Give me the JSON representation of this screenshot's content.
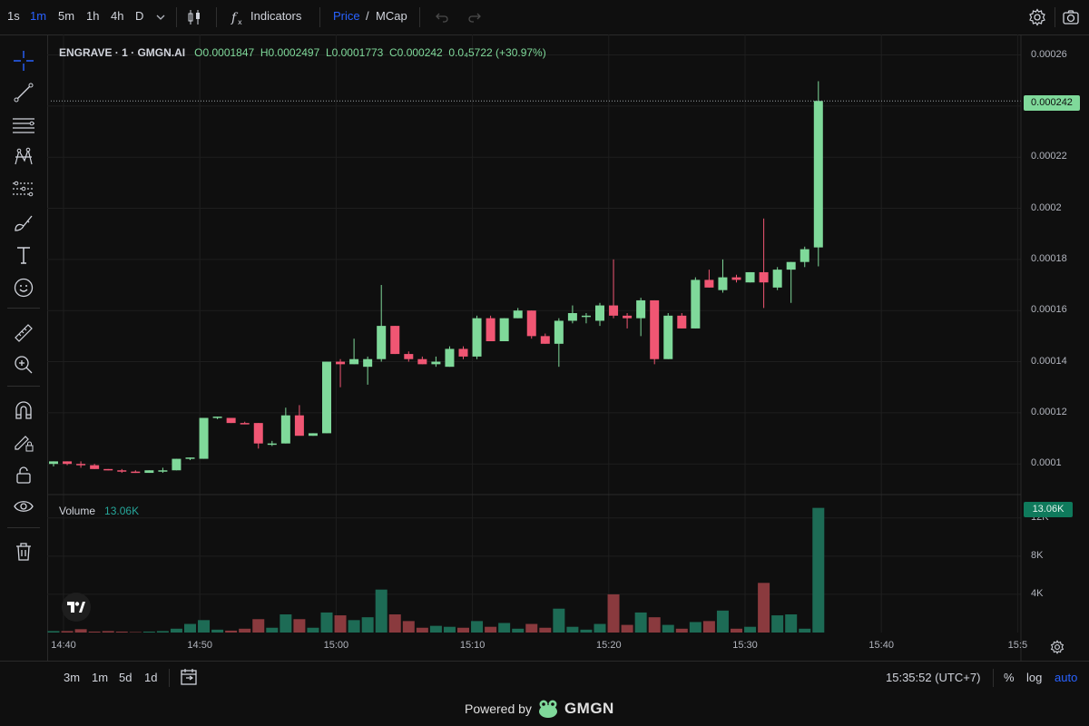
{
  "topbar": {
    "intervals": [
      "1s",
      "1m",
      "5m",
      "1h",
      "4h",
      "D"
    ],
    "active_interval": "1m",
    "indicators_label": "Indicators",
    "price_label": "Price",
    "slash": "/",
    "mcap_label": "MCap"
  },
  "legend": {
    "symbol": "ENGRAVE · 1 · GMGN.AI",
    "open": "O0.0001847",
    "high": "H0.0002497",
    "low": "L0.0001773",
    "close": "C0.000242",
    "change": "0.0₄5722 (+30.97%)"
  },
  "volume_legend": {
    "label": "Volume",
    "value": "13.06K"
  },
  "price_axis": {
    "ticks": [
      "0.00026",
      "0.00024",
      "0.00022",
      "0.0002",
      "0.00018",
      "0.00016",
      "0.00014",
      "0.00012",
      "0.0001"
    ],
    "last_price": "0.000242"
  },
  "volume_axis": {
    "ticks": [
      "12K",
      "8K",
      "4K"
    ],
    "last_volume": "13.06K"
  },
  "time_axis": [
    "14:40",
    "14:50",
    "15:00",
    "15:10",
    "15:20",
    "15:30",
    "15:40",
    "15:5"
  ],
  "bottombar": {
    "ranges": [
      "3m",
      "1m",
      "5d",
      "1d"
    ],
    "clock": "15:35:52 (UTC+7)",
    "percent_label": "%",
    "log_label": "log",
    "auto_label": "auto"
  },
  "footer": {
    "powered_by": "Powered by",
    "brand": "GMGN"
  },
  "colors": {
    "up": "#7fd99a",
    "down": "#f05673",
    "vol_up": "#1d6b55",
    "vol_down": "#8a3a3e",
    "accent": "#2962ff"
  },
  "chart_data": {
    "type": "candlestick",
    "x_unit": "time (1-minute candles, from 14:40)",
    "y_range": [
      8.8e-05,
      0.000268
    ],
    "candles": [
      {
        "t": "14:40",
        "o": 0.0001,
        "h": 0.000101,
        "l": 9.9e-05,
        "c": 0.000101
      },
      {
        "t": "14:41",
        "o": 0.000101,
        "h": 0.000101,
        "l": 9.95e-05,
        "c": 0.0001
      },
      {
        "t": "14:42",
        "o": 0.0001,
        "h": 0.000101,
        "l": 9.85e-05,
        "c": 9.95e-05
      },
      {
        "t": "14:43",
        "o": 9.95e-05,
        "h": 0.0001,
        "l": 9.8e-05,
        "c": 9.8e-05
      },
      {
        "t": "14:44",
        "o": 9.8e-05,
        "h": 9.8e-05,
        "l": 9.75e-05,
        "c": 9.75e-05
      },
      {
        "t": "14:45",
        "o": 9.75e-05,
        "h": 9.8e-05,
        "l": 9.65e-05,
        "c": 9.7e-05
      },
      {
        "t": "14:46",
        "o": 9.7e-05,
        "h": 9.75e-05,
        "l": 9.65e-05,
        "c": 9.65e-05
      },
      {
        "t": "14:47",
        "o": 9.65e-05,
        "h": 9.75e-05,
        "l": 9.65e-05,
        "c": 9.75e-05
      },
      {
        "t": "14:48",
        "o": 9.75e-05,
        "h": 9.85e-05,
        "l": 9.65e-05,
        "c": 9.75e-05
      },
      {
        "t": "14:49",
        "o": 9.75e-05,
        "h": 0.000102,
        "l": 9.75e-05,
        "c": 0.000102
      },
      {
        "t": "14:50",
        "o": 0.000102,
        "h": 0.0001025,
        "l": 0.0001015,
        "c": 0.0001025
      },
      {
        "t": "14:51",
        "o": 0.000102,
        "h": 0.000118,
        "l": 0.000102,
        "c": 0.000118
      },
      {
        "t": "14:52",
        "o": 0.000118,
        "h": 0.0001185,
        "l": 0.0001175,
        "c": 0.0001185
      },
      {
        "t": "14:53",
        "o": 0.000118,
        "h": 0.000118,
        "l": 0.000116,
        "c": 0.000116
      },
      {
        "t": "14:54",
        "o": 0.000116,
        "h": 0.0001165,
        "l": 0.0001155,
        "c": 0.0001155
      },
      {
        "t": "14:55",
        "o": 0.000116,
        "h": 0.000116,
        "l": 0.000106,
        "c": 0.000108
      },
      {
        "t": "14:56",
        "o": 0.000108,
        "h": 0.000109,
        "l": 0.000107,
        "c": 0.000108
      },
      {
        "t": "14:57",
        "o": 0.000108,
        "h": 0.000122,
        "l": 0.000108,
        "c": 0.000119
      },
      {
        "t": "14:58",
        "o": 0.000119,
        "h": 0.000123,
        "l": 0.000112,
        "c": 0.000111
      },
      {
        "t": "14:59",
        "o": 0.000111,
        "h": 0.000112,
        "l": 0.000111,
        "c": 0.000112
      },
      {
        "t": "15:00",
        "o": 0.000112,
        "h": 0.00014,
        "l": 0.000112,
        "c": 0.00014
      },
      {
        "t": "15:01",
        "o": 0.00014,
        "h": 0.000141,
        "l": 0.00013,
        "c": 0.000139
      },
      {
        "t": "15:02",
        "o": 0.000139,
        "h": 0.000149,
        "l": 0.000139,
        "c": 0.000141
      },
      {
        "t": "15:03",
        "o": 0.000138,
        "h": 0.000142,
        "l": 0.000131,
        "c": 0.000141
      },
      {
        "t": "15:04",
        "o": 0.000141,
        "h": 0.00017,
        "l": 0.00014,
        "c": 0.000154
      },
      {
        "t": "15:05",
        "o": 0.000154,
        "h": 0.000154,
        "l": 0.000143,
        "c": 0.000143
      },
      {
        "t": "15:06",
        "o": 0.000143,
        "h": 0.000144,
        "l": 0.00014,
        "c": 0.000141
      },
      {
        "t": "15:07",
        "o": 0.000141,
        "h": 0.000142,
        "l": 0.000139,
        "c": 0.000139
      },
      {
        "t": "15:08",
        "o": 0.000139,
        "h": 0.000142,
        "l": 0.000138,
        "c": 0.00014
      },
      {
        "t": "15:09",
        "o": 0.000138,
        "h": 0.000146,
        "l": 0.000138,
        "c": 0.000145
      },
      {
        "t": "15:10",
        "o": 0.000145,
        "h": 0.000146,
        "l": 0.000141,
        "c": 0.000142
      },
      {
        "t": "15:11",
        "o": 0.000142,
        "h": 0.000158,
        "l": 0.000141,
        "c": 0.000157
      },
      {
        "t": "15:12",
        "o": 0.000157,
        "h": 0.000158,
        "l": 0.000148,
        "c": 0.000148
      },
      {
        "t": "15:13",
        "o": 0.000148,
        "h": 0.000157,
        "l": 0.000148,
        "c": 0.000157
      },
      {
        "t": "15:14",
        "o": 0.000157,
        "h": 0.000161,
        "l": 0.000157,
        "c": 0.00016
      },
      {
        "t": "15:15",
        "o": 0.00016,
        "h": 0.00016,
        "l": 0.000149,
        "c": 0.00015
      },
      {
        "t": "15:16",
        "o": 0.00015,
        "h": 0.000151,
        "l": 0.000147,
        "c": 0.000147
      },
      {
        "t": "15:17",
        "o": 0.000147,
        "h": 0.000157,
        "l": 0.000138,
        "c": 0.000156
      },
      {
        "t": "15:18",
        "o": 0.000156,
        "h": 0.000162,
        "l": 0.000155,
        "c": 0.000159
      },
      {
        "t": "15:19",
        "o": 0.000158,
        "h": 0.000159,
        "l": 0.000155,
        "c": 0.000158
      },
      {
        "t": "15:20",
        "o": 0.000156,
        "h": 0.000163,
        "l": 0.000154,
        "c": 0.000162
      },
      {
        "t": "15:21",
        "o": 0.000162,
        "h": 0.00018,
        "l": 0.000157,
        "c": 0.000158
      },
      {
        "t": "15:22",
        "o": 0.000158,
        "h": 0.000159,
        "l": 0.000153,
        "c": 0.000157
      },
      {
        "t": "15:23",
        "o": 0.000157,
        "h": 0.000165,
        "l": 0.00015,
        "c": 0.000164
      },
      {
        "t": "15:24",
        "o": 0.000164,
        "h": 0.000164,
        "l": 0.000139,
        "c": 0.000141
      },
      {
        "t": "15:25",
        "o": 0.000141,
        "h": 0.000159,
        "l": 0.000141,
        "c": 0.000158
      },
      {
        "t": "15:26",
        "o": 0.000158,
        "h": 0.000159,
        "l": 0.000153,
        "c": 0.000153
      },
      {
        "t": "15:27",
        "o": 0.000153,
        "h": 0.000173,
        "l": 0.000153,
        "c": 0.000172
      },
      {
        "t": "15:28",
        "o": 0.000172,
        "h": 0.000176,
        "l": 0.000169,
        "c": 0.000169
      },
      {
        "t": "15:29",
        "o": 0.000168,
        "h": 0.00018,
        "l": 0.000167,
        "c": 0.000173
      },
      {
        "t": "15:30",
        "o": 0.000173,
        "h": 0.000174,
        "l": 0.000171,
        "c": 0.000172
      },
      {
        "t": "15:31",
        "o": 0.000171,
        "h": 0.000175,
        "l": 0.000171,
        "c": 0.000175
      },
      {
        "t": "15:32",
        "o": 0.000175,
        "h": 0.000196,
        "l": 0.000161,
        "c": 0.000171
      },
      {
        "t": "15:33",
        "o": 0.000169,
        "h": 0.000177,
        "l": 0.000168,
        "c": 0.000176
      },
      {
        "t": "15:34",
        "o": 0.000176,
        "h": 0.000179,
        "l": 0.000163,
        "c": 0.000179
      },
      {
        "t": "15:35",
        "o": 0.000179,
        "h": 0.000185,
        "l": 0.000177,
        "c": 0.000184
      },
      {
        "t": "15:35b",
        "o": 0.0001847,
        "h": 0.0002497,
        "l": 0.0001773,
        "c": 0.000242
      }
    ],
    "volume": [
      0.15,
      0.15,
      0.35,
      0.1,
      0.15,
      0.1,
      0.05,
      0.1,
      0.15,
      0.4,
      0.9,
      1.3,
      0.3,
      0.2,
      0.4,
      1.4,
      0.5,
      1.9,
      1.4,
      0.5,
      2.1,
      1.8,
      1.3,
      1.6,
      4.5,
      1.9,
      1.2,
      0.5,
      0.7,
      0.6,
      0.5,
      1.2,
      0.6,
      1.0,
      0.4,
      0.9,
      0.5,
      2.5,
      0.6,
      0.3,
      0.9,
      4.0,
      0.8,
      2.1,
      1.6,
      0.8,
      0.4,
      1.1,
      1.2,
      2.3,
      0.4,
      0.6,
      5.2,
      1.8,
      1.9,
      0.4,
      13.06
    ],
    "volume_range": [
      0,
      13.5
    ]
  }
}
